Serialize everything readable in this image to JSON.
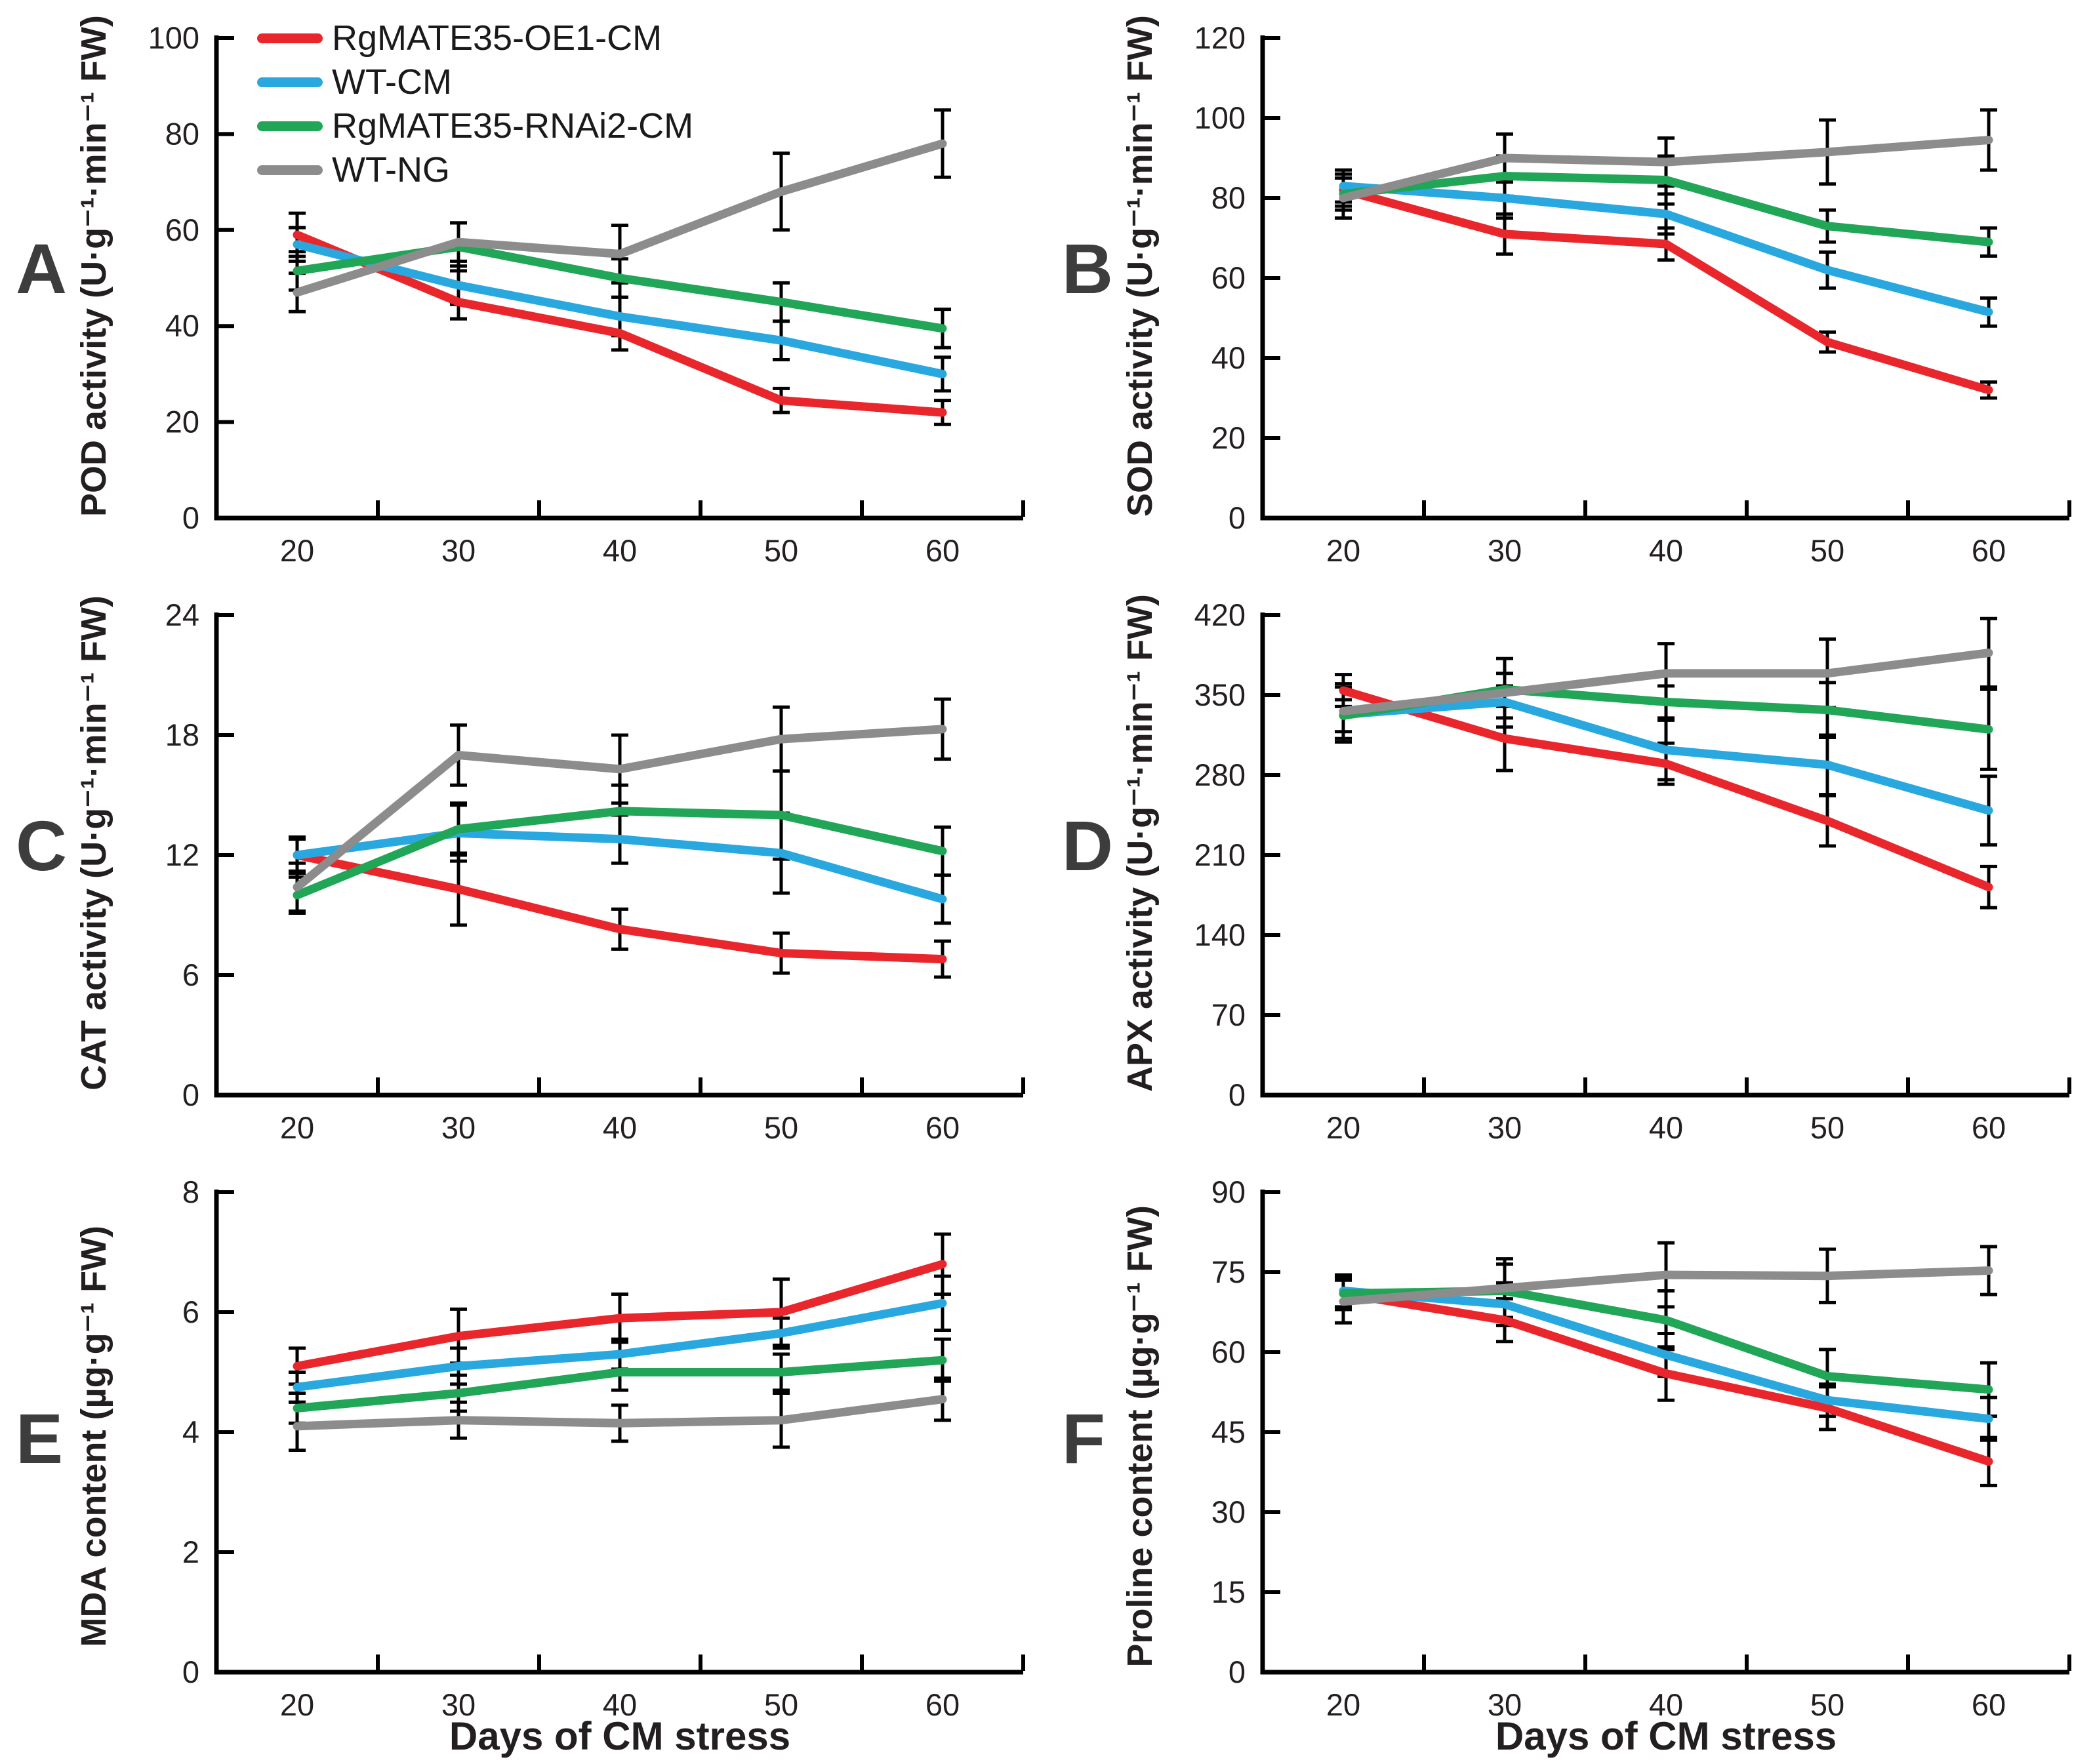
{
  "figure": {
    "xlabel": "Days of CM stress"
  },
  "legend": {
    "items": [
      {
        "label": "RgMATE35-OE1-CM",
        "color": "#e8262b"
      },
      {
        "label": "WT-CM",
        "color": "#29a8e0"
      },
      {
        "label": "RgMATE35-RNAi2-CM",
        "color": "#21a557"
      },
      {
        "label": "WT-NG",
        "color": "#8c8c8c"
      }
    ]
  },
  "chart_data": [
    {
      "type": "line",
      "panel": "A",
      "ylabel": "POD activity (U·g⁻¹·min⁻¹ FW)",
      "xlabel": "Days of CM stress",
      "ylim": [
        0,
        100
      ],
      "yticks": [
        0,
        20,
        40,
        60,
        80,
        100
      ],
      "x": [
        20,
        30,
        40,
        50,
        60
      ],
      "series": [
        {
          "name": "RgMATE35-OE1-CM",
          "color": "#e8262b",
          "values": [
            59,
            45,
            38.5,
            24.5,
            22
          ],
          "errors": [
            4.5,
            3.5,
            3.5,
            2.5,
            2.5
          ]
        },
        {
          "name": "WT-CM",
          "color": "#29a8e0",
          "values": [
            57,
            48.5,
            42,
            37,
            30
          ],
          "errors": [
            3.5,
            4,
            4,
            4,
            3.5
          ]
        },
        {
          "name": "RgMATE35-RNAi2-CM",
          "color": "#21a557",
          "values": [
            51.5,
            56.5,
            50,
            45,
            39.5
          ],
          "errors": [
            4,
            5,
            4,
            4,
            4
          ]
        },
        {
          "name": "WT-NG",
          "color": "#8c8c8c",
          "values": [
            47,
            57.5,
            55,
            68,
            78
          ],
          "errors": [
            4,
            4,
            6,
            8,
            7
          ]
        }
      ]
    },
    {
      "type": "line",
      "panel": "B",
      "ylabel": "SOD activity (U·g⁻¹·min⁻¹ FW)",
      "xlabel": "Days of CM stress",
      "ylim": [
        0,
        120
      ],
      "yticks": [
        0,
        20,
        40,
        60,
        80,
        100,
        120
      ],
      "x": [
        20,
        30,
        40,
        50,
        60
      ],
      "series": [
        {
          "name": "RgMATE35-OE1-CM",
          "color": "#e8262b",
          "values": [
            82,
            71,
            68.5,
            44,
            32
          ],
          "errors": [
            4,
            5,
            4,
            2.5,
            2
          ]
        },
        {
          "name": "WT-CM",
          "color": "#29a8e0",
          "values": [
            83,
            80,
            76,
            62,
            51.5
          ],
          "errors": [
            4,
            5,
            5,
            4.5,
            3.5
          ]
        },
        {
          "name": "RgMATE35-RNAi2-CM",
          "color": "#21a557",
          "values": [
            81,
            85.5,
            84.5,
            73,
            69
          ],
          "errors": [
            4,
            5,
            6,
            4,
            3.5
          ]
        },
        {
          "name": "WT-NG",
          "color": "#8c8c8c",
          "values": [
            80,
            90,
            89,
            91.5,
            94.5
          ],
          "errors": [
            5,
            6,
            6,
            8,
            7.5
          ]
        }
      ]
    },
    {
      "type": "line",
      "panel": "C",
      "ylabel": "CAT activity (U·g⁻¹·min⁻¹ FW)",
      "xlabel": "Days of CM stress",
      "ylim": [
        0,
        24
      ],
      "yticks": [
        0,
        6,
        12,
        18,
        24
      ],
      "x": [
        20,
        30,
        40,
        50,
        60
      ],
      "series": [
        {
          "name": "RgMATE35-OE1-CM",
          "color": "#e8262b",
          "values": [
            12,
            10.3,
            8.3,
            7.1,
            6.8
          ],
          "errors": [
            0.8,
            1.8,
            1,
            1,
            0.9
          ]
        },
        {
          "name": "WT-CM",
          "color": "#29a8e0",
          "values": [
            12,
            13.1,
            12.8,
            12.1,
            9.8
          ],
          "errors": [
            0.9,
            1.4,
            1.2,
            2,
            1.2
          ]
        },
        {
          "name": "RgMATE35-RNAi2-CM",
          "color": "#21a557",
          "values": [
            10,
            13.3,
            14.2,
            14,
            12.2
          ],
          "errors": [
            0.9,
            1.3,
            1.3,
            2.2,
            1.2
          ]
        },
        {
          "name": "WT-NG",
          "color": "#8c8c8c",
          "values": [
            10.4,
            17,
            16.3,
            17.8,
            18.3
          ],
          "errors": [
            1.2,
            1.5,
            1.7,
            1.6,
            1.5
          ]
        }
      ]
    },
    {
      "type": "line",
      "panel": "D",
      "ylabel": "APX activity (U·g⁻¹·min⁻¹ FW)",
      "xlabel": "Days of CM stress",
      "ylim": [
        0,
        420
      ],
      "yticks": [
        0,
        70,
        140,
        210,
        280,
        350,
        420
      ],
      "x": [
        20,
        30,
        40,
        50,
        60
      ],
      "series": [
        {
          "name": "RgMATE35-OE1-CM",
          "color": "#e8262b",
          "values": [
            354,
            312,
            290,
            240,
            182
          ],
          "errors": [
            14,
            28,
            18,
            22,
            18
          ]
        },
        {
          "name": "WT-CM",
          "color": "#29a8e0",
          "values": [
            333,
            344,
            302,
            289,
            249
          ],
          "errors": [
            24,
            14,
            26,
            26,
            30
          ]
        },
        {
          "name": "RgMATE35-RNAi2-CM",
          "color": "#21a557",
          "values": [
            332,
            355,
            344,
            337,
            320
          ],
          "errors": [
            14,
            14,
            14,
            24,
            35
          ]
        },
        {
          "name": "WT-NG",
          "color": "#8c8c8c",
          "values": [
            336,
            352,
            369,
            369,
            387
          ],
          "errors": [
            24,
            30,
            26,
            30,
            30
          ]
        }
      ]
    },
    {
      "type": "line",
      "panel": "E",
      "ylabel": "MDA content (µg·g⁻¹ FW)",
      "xlabel": "Days of CM stress",
      "ylim": [
        0,
        8
      ],
      "yticks": [
        0,
        2,
        4,
        6,
        8
      ],
      "x": [
        20,
        30,
        40,
        50,
        60
      ],
      "series": [
        {
          "name": "RgMATE35-OE1-CM",
          "color": "#e8262b",
          "values": [
            5.1,
            5.6,
            5.9,
            6.0,
            6.8
          ],
          "errors": [
            0.3,
            0.45,
            0.4,
            0.55,
            0.5
          ]
        },
        {
          "name": "WT-CM",
          "color": "#29a8e0",
          "values": [
            4.75,
            5.1,
            5.3,
            5.65,
            6.15
          ],
          "errors": [
            0.25,
            0.3,
            0.25,
            0.25,
            0.45
          ]
        },
        {
          "name": "RgMATE35-RNAi2-CM",
          "color": "#21a557",
          "values": [
            4.4,
            4.65,
            5.0,
            5.0,
            5.2
          ],
          "errors": [
            0.25,
            0.3,
            0.3,
            0.3,
            0.35
          ]
        },
        {
          "name": "WT-NG",
          "color": "#8c8c8c",
          "values": [
            4.1,
            4.2,
            4.15,
            4.2,
            4.55
          ],
          "errors": [
            0.4,
            0.3,
            0.3,
            0.45,
            0.35
          ]
        }
      ]
    },
    {
      "type": "line",
      "panel": "F",
      "ylabel": "Proline content (µg·g⁻¹ FW)",
      "xlabel": "Days of CM stress",
      "ylim": [
        0,
        90
      ],
      "yticks": [
        0,
        15,
        30,
        45,
        60,
        75,
        90
      ],
      "x": [
        20,
        30,
        40,
        50,
        60
      ],
      "series": [
        {
          "name": "RgMATE35-OE1-CM",
          "color": "#e8262b",
          "values": [
            71,
            66,
            56,
            49.5,
            39.5
          ],
          "errors": [
            3,
            4,
            5,
            4,
            4.5
          ]
        },
        {
          "name": "WT-CM",
          "color": "#29a8e0",
          "values": [
            71.5,
            69,
            59.5,
            51,
            47.5
          ],
          "errors": [
            3,
            4,
            4,
            3,
            4
          ]
        },
        {
          "name": "RgMATE35-RNAi2-CM",
          "color": "#21a557",
          "values": [
            71,
            71.5,
            66,
            55.5,
            53
          ],
          "errors": [
            3,
            5,
            5.5,
            5,
            5
          ]
        },
        {
          "name": "WT-NG",
          "color": "#8c8c8c",
          "values": [
            69.5,
            72,
            74.5,
            74.3,
            75.3
          ],
          "errors": [
            4,
            5.5,
            6,
            5,
            4.5
          ]
        }
      ]
    }
  ]
}
